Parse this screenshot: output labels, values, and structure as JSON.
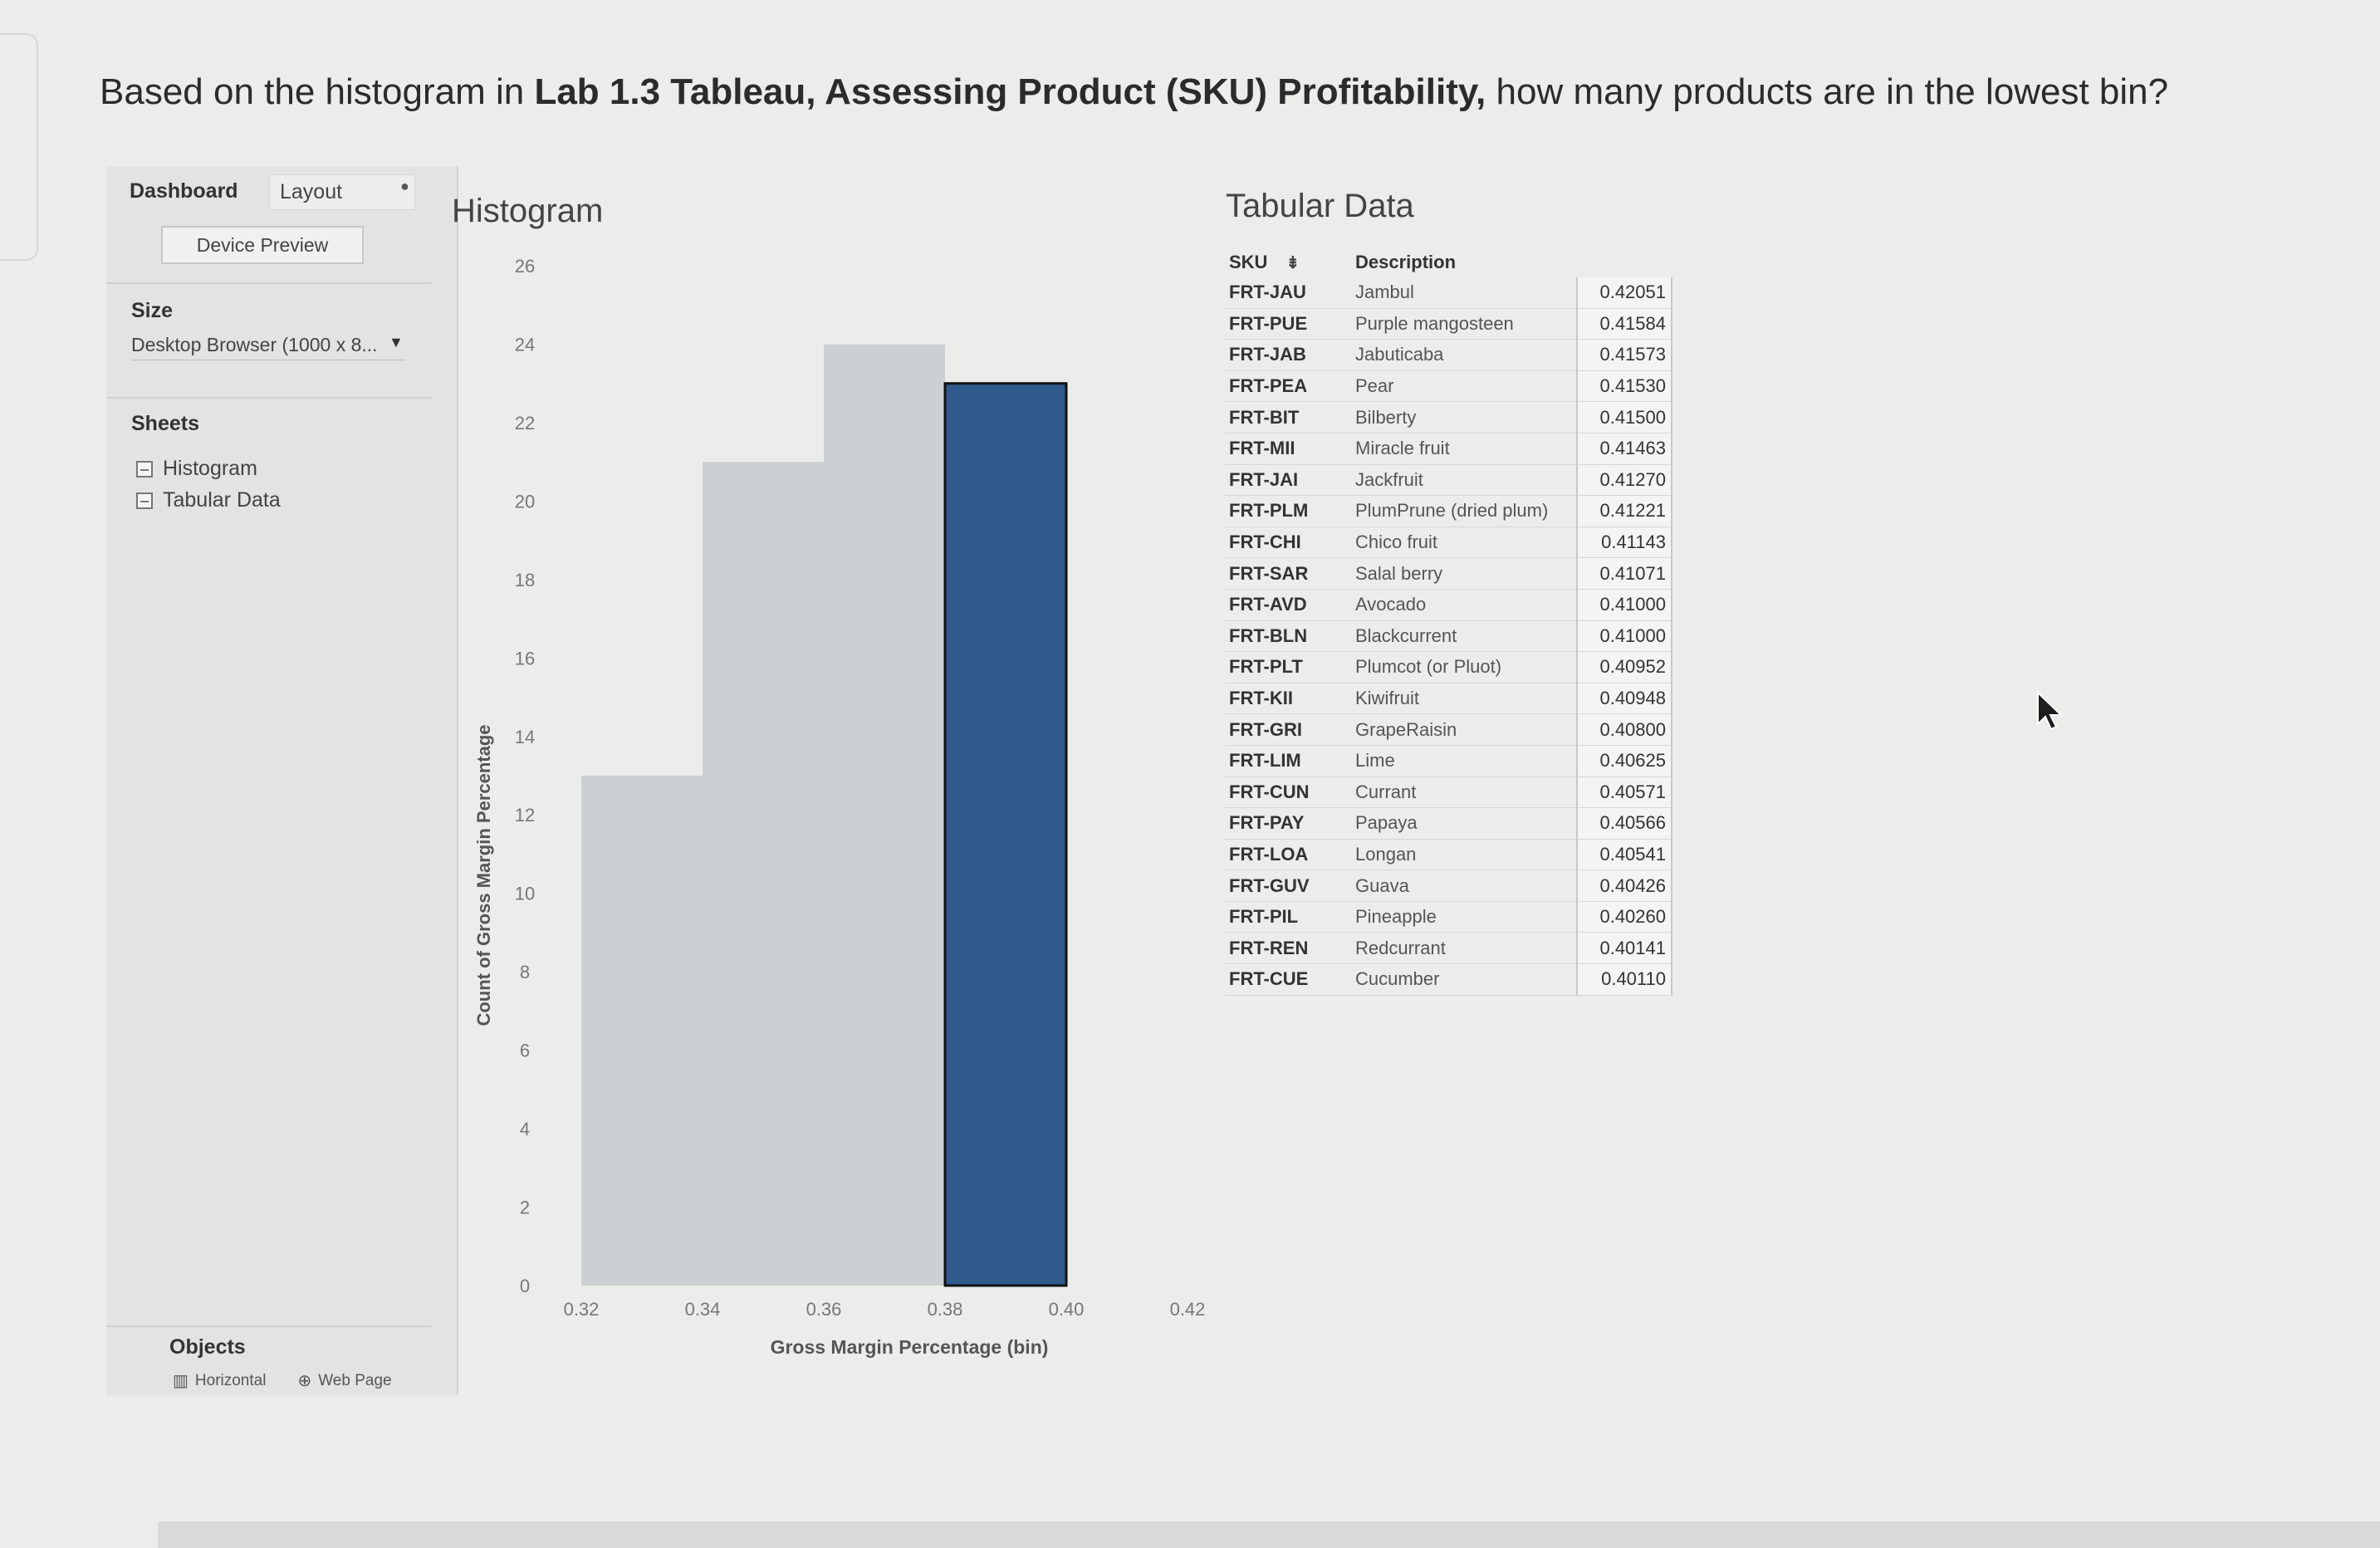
{
  "question": {
    "before": "Based on the histogram in ",
    "bold": "Lab 1.3 Tableau, Assessing Product (SKU) Profitability,",
    "after": " how many products are in the lowest bin?"
  },
  "pane": {
    "tabs": {
      "dashboard": "Dashboard",
      "layout": "Layout"
    },
    "device_preview": "Device Preview",
    "size_title": "Size",
    "size_value": "Desktop Browser (1000 x 8...",
    "sheets_title": "Sheets",
    "sheets": [
      "Histogram",
      "Tabular Data"
    ],
    "objects_title": "Objects",
    "objects": [
      {
        "icon": "horizontal-icon",
        "label": "Horizontal"
      },
      {
        "icon": "webpage-icon",
        "label": "Web Page"
      }
    ]
  },
  "histogram": {
    "title": "Histogram",
    "bar_color": "#2f5a8c",
    "bar_color_light": "#cdd0d3"
  },
  "chart_data": {
    "type": "bar",
    "title": "Histogram",
    "xlabel": "Gross Margin Percentage (bin)",
    "ylabel": "Count of Gross Margin Percentage",
    "x_ticks": [
      "0.32",
      "0.34",
      "0.36",
      "0.38",
      "0.40",
      "0.42"
    ],
    "y_ticks": [
      "0",
      "2",
      "4",
      "6",
      "8",
      "10",
      "12",
      "14",
      "16",
      "18",
      "20",
      "22",
      "24",
      "26"
    ],
    "ylim": [
      0,
      26
    ],
    "bins": [
      {
        "start": 0.32,
        "end": 0.34,
        "value": 13
      },
      {
        "start": 0.34,
        "end": 0.36,
        "value": 21
      },
      {
        "start": 0.36,
        "end": 0.38,
        "value": 24
      },
      {
        "start": 0.38,
        "end": 0.4,
        "value": 23,
        "highlighted": true
      }
    ],
    "grid": false
  },
  "tabular": {
    "title": "Tabular Data",
    "headers": {
      "sku": "SKU",
      "description": "Description"
    },
    "rows": [
      [
        "FRT-JAU",
        "Jambul",
        "0.42051"
      ],
      [
        "FRT-PUE",
        "Purple mangosteen",
        "0.41584"
      ],
      [
        "FRT-JAB",
        "Jabuticaba",
        "0.41573"
      ],
      [
        "FRT-PEA",
        "Pear",
        "0.41530"
      ],
      [
        "FRT-BIT",
        "Bilberty",
        "0.41500"
      ],
      [
        "FRT-MII",
        "Miracle fruit",
        "0.41463"
      ],
      [
        "FRT-JAI",
        "Jackfruit",
        "0.41270"
      ],
      [
        "FRT-PLM",
        "PlumPrune (dried plum)",
        "0.41221"
      ],
      [
        "FRT-CHI",
        "Chico fruit",
        "0.41143"
      ],
      [
        "FRT-SAR",
        "Salal berry",
        "0.41071"
      ],
      [
        "FRT-AVD",
        "Avocado",
        "0.41000"
      ],
      [
        "FRT-BLN",
        "Blackcurrent",
        "0.41000"
      ],
      [
        "FRT-PLT",
        "Plumcot (or Pluot)",
        "0.40952"
      ],
      [
        "FRT-KII",
        "Kiwifruit",
        "0.40948"
      ],
      [
        "FRT-GRI",
        "GrapeRaisin",
        "0.40800"
      ],
      [
        "FRT-LIM",
        "Lime",
        "0.40625"
      ],
      [
        "FRT-CUN",
        "Currant",
        "0.40571"
      ],
      [
        "FRT-PAY",
        "Papaya",
        "0.40566"
      ],
      [
        "FRT-LOA",
        "Longan",
        "0.40541"
      ],
      [
        "FRT-GUV",
        "Guava",
        "0.40426"
      ],
      [
        "FRT-PIL",
        "Pineapple",
        "0.40260"
      ],
      [
        "FRT-REN",
        "Redcurrant",
        "0.40141"
      ],
      [
        "FRT-CUE",
        "Cucumber",
        "0.40110"
      ]
    ]
  }
}
